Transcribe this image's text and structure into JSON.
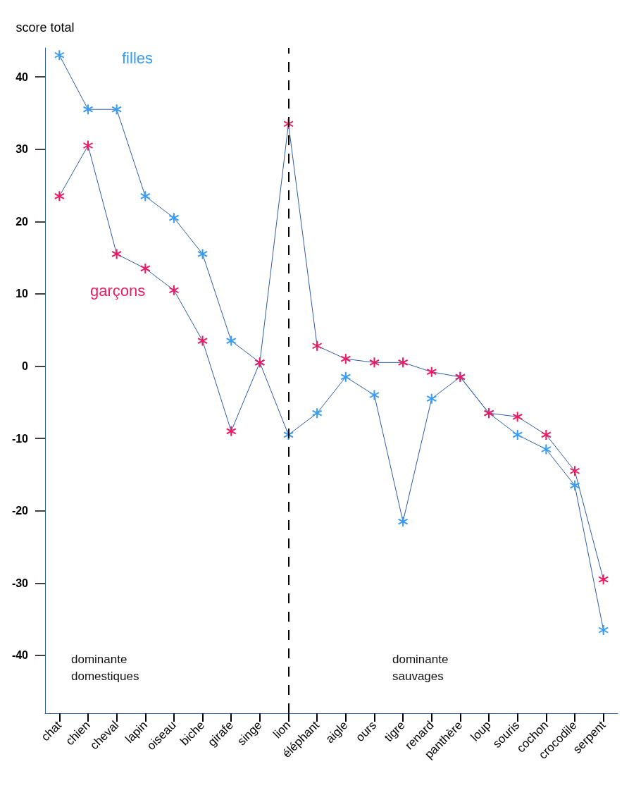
{
  "chart_data": {
    "type": "line",
    "ylabel": "score total",
    "categories": [
      "chat",
      "chien",
      "cheval",
      "lapin",
      "oiseau",
      "biche",
      "girafe",
      "singe",
      "lion",
      "éléphant",
      "aigle",
      "ours",
      "tigre",
      "renard",
      "panthère",
      "loup",
      "souris",
      "cochon",
      "crocodile",
      "serpent"
    ],
    "series": [
      {
        "name": "filles",
        "color": "#3a9cf0",
        "values": [
          43,
          35.5,
          35.5,
          23.5,
          20.5,
          15.5,
          3.5,
          0.5,
          -9.5,
          -6.5,
          -1.5,
          -4,
          -21.5,
          -4.5,
          -1.5,
          -6.5,
          -9.5,
          -11.5,
          -16.5,
          -36.5
        ]
      },
      {
        "name": "garçons",
        "color": "#ec1a63",
        "values": [
          23.5,
          30.5,
          15.5,
          13.5,
          10.5,
          3.5,
          -9,
          0.5,
          33.5,
          2.8,
          1,
          0.5,
          0.5,
          -0.8,
          -1.5,
          -6.5,
          -7,
          -9.5,
          -14.5,
          -29.5
        ]
      }
    ],
    "ylim": [
      -48,
      44
    ],
    "yticks": [
      -40,
      -30,
      -20,
      -10,
      0,
      10,
      20,
      30,
      40
    ],
    "grid": false,
    "legend": "top left",
    "marker": "cross",
    "line_style": "solid",
    "ref_lines": [
      {
        "axis": "x",
        "value": "lion",
        "color": "#000000",
        "line_style": "dashed"
      }
    ],
    "annotations": [
      "dominante\ndomestiques",
      "dominante\nsauvages"
    ]
  }
}
